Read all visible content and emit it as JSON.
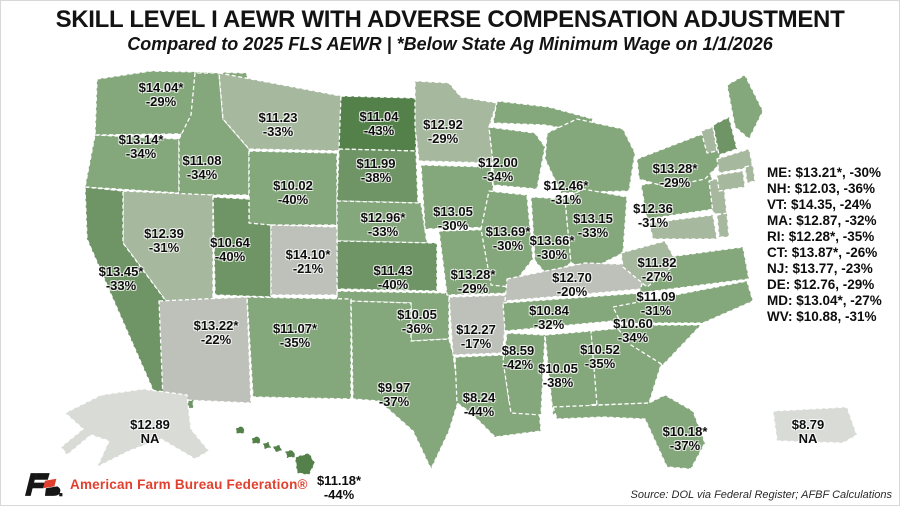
{
  "title": "SKILL LEVEL I AEWR WITH ADVERSE COMPENSATION ADJUSTMENT",
  "subtitle": "Compared to 2025 FLS AEWR | *Below State Ag Minimum Wage on 1/1/2026",
  "source": "Source: DOL via Federal Register; AFBF Calculations",
  "logo_text": "American Farm Bureau Federation®",
  "colors": {
    "dark": "#54804a",
    "mdark": "#6f9566",
    "med": "#84a77b",
    "sage": "#a6b89e",
    "gray": "#bdc1b9",
    "lightgray": "#d9dbd6",
    "label_text": "#0d0d0d",
    "logo_red": "#e2402e"
  },
  "chart_data": {
    "type": "heatmap",
    "subtype": "us-choropleth-map",
    "unit": "USD per hour vs. percent change",
    "title": "Skill Level I AEWR with Adverse Compensation Adjustment",
    "legend_position": "none",
    "states": [
      {
        "abbr": "WA",
        "value": "$14.04*",
        "change": "-29%",
        "shade": "med"
      },
      {
        "abbr": "OR",
        "value": "$13.14*",
        "change": "-34%",
        "shade": "med"
      },
      {
        "abbr": "CA",
        "value": "$13.45*",
        "change": "-33%",
        "shade": "mdark"
      },
      {
        "abbr": "NV",
        "value": "$12.39",
        "change": "-31%",
        "shade": "sage"
      },
      {
        "abbr": "ID",
        "value": "$11.08",
        "change": "-34%",
        "shade": "med"
      },
      {
        "abbr": "MT",
        "value": "$11.23",
        "change": "-33%",
        "shade": "sage"
      },
      {
        "abbr": "WY",
        "value": "$10.02",
        "change": "-40%",
        "shade": "med"
      },
      {
        "abbr": "UT",
        "value": "$10.64",
        "change": "-40%",
        "shade": "mdark"
      },
      {
        "abbr": "CO",
        "value": "$14.10*",
        "change": "-21%",
        "shade": "gray"
      },
      {
        "abbr": "AZ",
        "value": "$13.22*",
        "change": "-22%",
        "shade": "gray"
      },
      {
        "abbr": "NM",
        "value": "$11.07*",
        "change": "-35%",
        "shade": "med"
      },
      {
        "abbr": "ND",
        "value": "$11.04",
        "change": "-43%",
        "shade": "dark"
      },
      {
        "abbr": "SD",
        "value": "$11.99",
        "change": "-38%",
        "shade": "mdark"
      },
      {
        "abbr": "NE",
        "value": "$12.96*",
        "change": "-33%",
        "shade": "med"
      },
      {
        "abbr": "KS",
        "value": "$11.43",
        "change": "-40%",
        "shade": "mdark"
      },
      {
        "abbr": "OK",
        "value": "$10.05",
        "change": "-36%",
        "shade": "med"
      },
      {
        "abbr": "TX",
        "value": "$9.97",
        "change": "-37%",
        "shade": "med"
      },
      {
        "abbr": "MN",
        "value": "$12.92",
        "change": "-29%",
        "shade": "sage"
      },
      {
        "abbr": "IA",
        "value": "$13.05",
        "change": "-30%",
        "shade": "med"
      },
      {
        "abbr": "MO",
        "value": "$13.28*",
        "change": "-29%",
        "shade": "med"
      },
      {
        "abbr": "AR",
        "value": "$12.27",
        "change": "-17%",
        "shade": "gray"
      },
      {
        "abbr": "LA",
        "value": "$8.24",
        "change": "-44%",
        "shade": "med"
      },
      {
        "abbr": "WI",
        "value": "$12.00",
        "change": "-34%",
        "shade": "med"
      },
      {
        "abbr": "IL",
        "value": "$13.69*",
        "change": "-30%",
        "shade": "med"
      },
      {
        "abbr": "IN",
        "value": "$13.66*",
        "change": "-30%",
        "shade": "med"
      },
      {
        "abbr": "OH",
        "value": "$13.15",
        "change": "-33%",
        "shade": "med"
      },
      {
        "abbr": "MI",
        "value": "$12.46*",
        "change": "-31%",
        "shade": "med"
      },
      {
        "abbr": "KY",
        "value": "$12.70",
        "change": "-20%",
        "shade": "gray"
      },
      {
        "abbr": "TN",
        "value": "$10.84",
        "change": "-32%",
        "shade": "med"
      },
      {
        "abbr": "MS",
        "value": "$8.59",
        "change": "-42%",
        "shade": "med"
      },
      {
        "abbr": "AL",
        "value": "$10.05",
        "change": "-38%",
        "shade": "med"
      },
      {
        "abbr": "GA",
        "value": "$10.52",
        "change": "-35%",
        "shade": "med"
      },
      {
        "abbr": "FL",
        "value": "$10.18*",
        "change": "-37%",
        "shade": "med"
      },
      {
        "abbr": "SC",
        "value": "$10.60",
        "change": "-34%",
        "shade": "med"
      },
      {
        "abbr": "NC",
        "value": "$11.09",
        "change": "-31%",
        "shade": "med"
      },
      {
        "abbr": "VA",
        "value": "$11.82",
        "change": "-27%",
        "shade": "med"
      },
      {
        "abbr": "WV",
        "value": "$10.88",
        "change": "-31%",
        "shade": "sage"
      },
      {
        "abbr": "PA",
        "value": "$12.36",
        "change": "-31%",
        "shade": "med"
      },
      {
        "abbr": "NY",
        "value": "$13.28*",
        "change": "-29%",
        "shade": "med"
      },
      {
        "abbr": "NJ",
        "value": "$13.77",
        "change": "-23%",
        "shade": "sage"
      },
      {
        "abbr": "DE",
        "value": "$12.76",
        "change": "-29%",
        "shade": "sage"
      },
      {
        "abbr": "MD",
        "value": "$13.04*",
        "change": "-27%",
        "shade": "sage"
      },
      {
        "abbr": "VT",
        "value": "$14.35",
        "change": "-24%",
        "shade": "sage"
      },
      {
        "abbr": "NH",
        "value": "$12.03",
        "change": "-36%",
        "shade": "mdark"
      },
      {
        "abbr": "ME",
        "value": "$13.21*",
        "change": "-30%",
        "shade": "med"
      },
      {
        "abbr": "MA",
        "value": "$12.87",
        "change": "-32%",
        "shade": "sage"
      },
      {
        "abbr": "CT",
        "value": "$13.87*",
        "change": "-26%",
        "shade": "sage"
      },
      {
        "abbr": "RI",
        "value": "$12.28*",
        "change": "-35%",
        "shade": "sage"
      },
      {
        "abbr": "AK",
        "value": "$12.89",
        "change": "NA",
        "shade": "lightgray"
      },
      {
        "abbr": "HI",
        "value": "$11.18*",
        "change": "-44%",
        "shade": "dark"
      },
      {
        "abbr": "PR",
        "value": "$8.79",
        "change": "NA",
        "shade": "lightgray"
      }
    ],
    "inset_list_order": [
      "ME",
      "NH",
      "VT",
      "MA",
      "RI",
      "CT",
      "NJ",
      "DE",
      "MD",
      "WV"
    ]
  }
}
